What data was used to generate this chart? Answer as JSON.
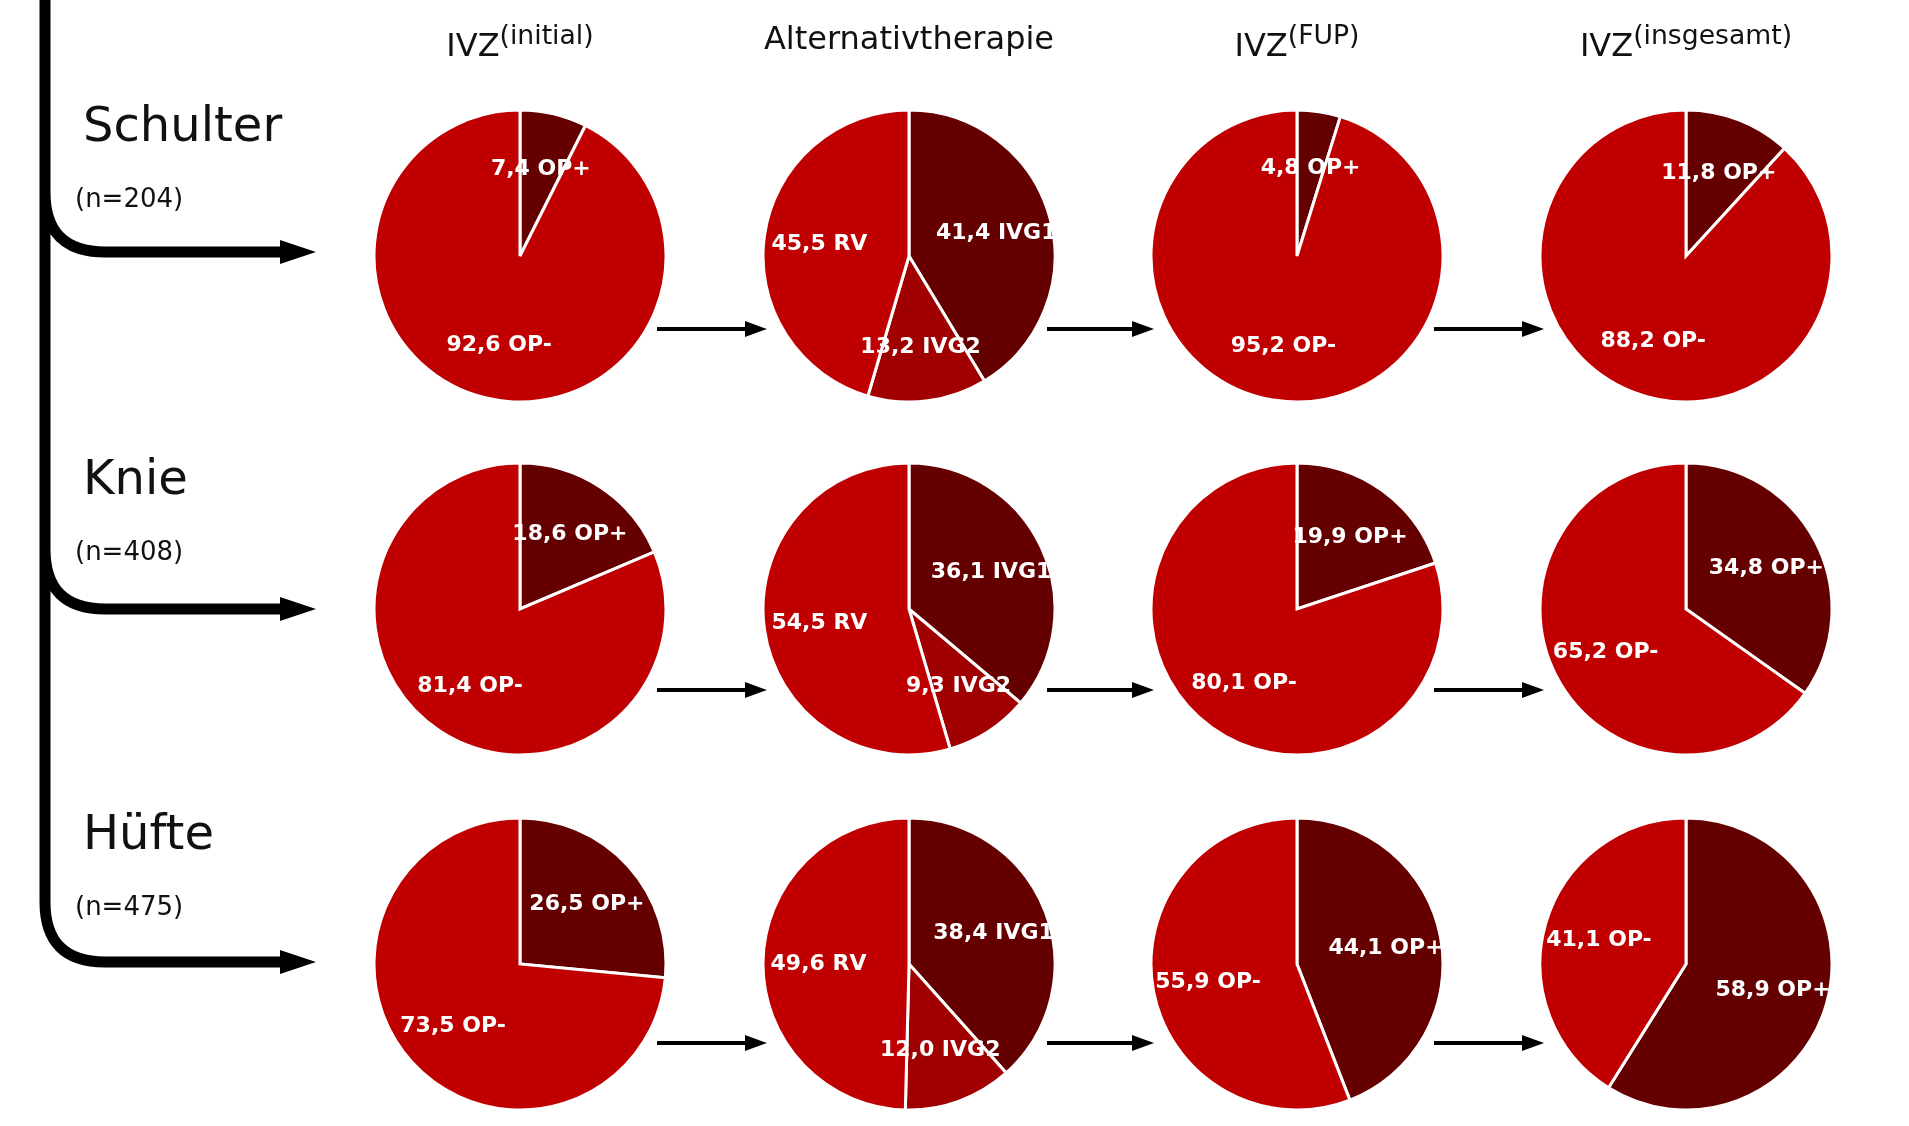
{
  "chart_data": [
    {
      "type": "pie",
      "title": "IVZ$^{(initial)}$",
      "categories": [
        "OP+",
        "OP-"
      ],
      "values": [
        7.4,
        92.6
      ],
      "value_labels": [
        "7,4",
        "92,6"
      ],
      "colors": [
        "#640000",
        "#c00000"
      ],
      "annotations": [
        "Schulter",
        "(n=204)"
      ]
    },
    {
      "type": "pie",
      "title": "Alternativtherapie",
      "categories": [
        "IVG1",
        "IVG2",
        "RV"
      ],
      "values": [
        41.4,
        13.2,
        45.5
      ],
      "value_labels": [
        "41,4",
        "13,2",
        "45,5"
      ],
      "colors": [
        "#640000",
        "#a00000",
        "#c00000"
      ]
    },
    {
      "type": "pie",
      "title": "IVZ$^{(FUP)}$",
      "categories": [
        "OP+",
        "OP-"
      ],
      "values": [
        4.8,
        95.2
      ],
      "value_labels": [
        "4,8",
        "95,2"
      ],
      "colors": [
        "#640000",
        "#c00000"
      ]
    },
    {
      "type": "pie",
      "title": "IVZ$^{(insgesamt)}$",
      "categories": [
        "OP+",
        "OP-"
      ],
      "values": [
        11.8,
        88.2
      ],
      "value_labels": [
        "11,8",
        "88,2"
      ],
      "colors": [
        "#640000",
        "#c00000"
      ]
    },
    {
      "type": "pie",
      "categories": [
        "OP+",
        "OP-"
      ],
      "values": [
        18.6,
        81.4
      ],
      "value_labels": [
        "18,6",
        "81,4"
      ],
      "colors": [
        "#640000",
        "#c00000"
      ],
      "annotations": [
        "Knie",
        "(n=408)"
      ]
    },
    {
      "type": "pie",
      "categories": [
        "IVG1",
        "IVG2",
        "RV"
      ],
      "values": [
        36.1,
        9.3,
        54.5
      ],
      "value_labels": [
        "36,1",
        "9,3",
        "54,5"
      ],
      "colors": [
        "#640000",
        "#a00000",
        "#c00000"
      ]
    },
    {
      "type": "pie",
      "categories": [
        "OP+",
        "OP-"
      ],
      "values": [
        19.9,
        80.1
      ],
      "value_labels": [
        "19,9",
        "80,1"
      ],
      "colors": [
        "#640000",
        "#c00000"
      ]
    },
    {
      "type": "pie",
      "categories": [
        "OP+",
        "OP-"
      ],
      "values": [
        34.8,
        65.2
      ],
      "value_labels": [
        "34,8",
        "65,2"
      ],
      "colors": [
        "#640000",
        "#c00000"
      ]
    },
    {
      "type": "pie",
      "categories": [
        "OP+",
        "OP-"
      ],
      "values": [
        26.5,
        73.5
      ],
      "value_labels": [
        "26,5",
        "73,5"
      ],
      "colors": [
        "#640000",
        "#c00000"
      ],
      "annotations": [
        "Hüfte",
        "(n=475)"
      ]
    },
    {
      "type": "pie",
      "categories": [
        "IVG1",
        "IVG2",
        "RV"
      ],
      "values": [
        38.4,
        12.0,
        49.6
      ],
      "value_labels": [
        "38,4",
        "12,0",
        "49,6"
      ],
      "colors": [
        "#640000",
        "#a00000",
        "#c00000"
      ]
    },
    {
      "type": "pie",
      "categories": [
        "OP+",
        "OP-"
      ],
      "values": [
        44.1,
        55.9
      ],
      "value_labels": [
        "44,1",
        "55,9"
      ],
      "colors": [
        "#640000",
        "#c00000"
      ]
    },
    {
      "type": "pie",
      "categories": [
        "OP+",
        "OP-"
      ],
      "values": [
        58.9,
        41.1
      ],
      "value_labels": [
        "58,9",
        "41,1"
      ],
      "colors": [
        "#640000",
        "#c00000"
      ]
    }
  ]
}
